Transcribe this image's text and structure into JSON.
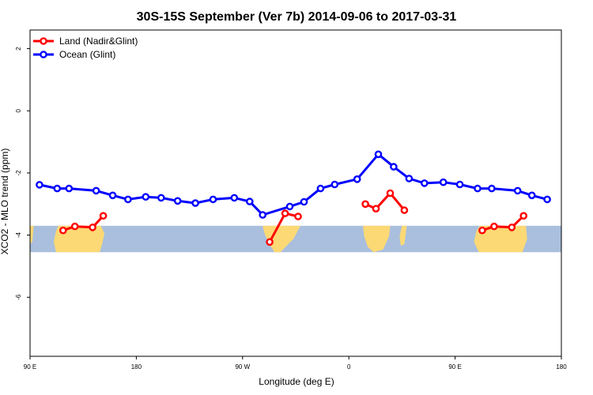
{
  "chart_data": {
    "type": "line",
    "title": "30S-15S September (Ver 7b)   2014-09-06 to 2017-03-31",
    "xlabel": "Longitude (deg E)",
    "ylabel": "XCO2 - MLO trend (ppm)",
    "xlim": [
      90,
      540
    ],
    "ylim": [
      -7.9,
      2.6
    ],
    "x_ticks": [
      {
        "value": 90,
        "label": "90 E"
      },
      {
        "value": 180,
        "label": "180"
      },
      {
        "value": 270,
        "label": "90 W"
      },
      {
        "value": 360,
        "label": "0"
      },
      {
        "value": 450,
        "label": "90 E"
      },
      {
        "value": 540,
        "label": "180"
      }
    ],
    "y_ticks": [
      {
        "value": 2,
        "label": "2"
      },
      {
        "value": 0,
        "label": "0"
      },
      {
        "value": -2,
        "label": "-2"
      },
      {
        "value": -4,
        "label": "-4"
      },
      {
        "value": -6,
        "label": "-6"
      }
    ],
    "legend_position": "top-left",
    "grid": false,
    "map_band": {
      "y_range": [
        -4.55,
        -3.7
      ],
      "ocean_color": "#a9bfdd",
      "land_color": "#fcd975"
    },
    "series": [
      {
        "name": "Land (Nadir&Glint)",
        "color": "#ff0000",
        "segments": [
          [
            [
              118,
              -3.85
            ],
            [
              128,
              -3.72
            ],
            [
              143,
              -3.75
            ],
            [
              152,
              -3.38
            ]
          ],
          [
            [
              293,
              -4.22
            ],
            [
              306,
              -3.3
            ],
            [
              317,
              -3.4
            ]
          ],
          [
            [
              374,
              -3.0
            ],
            [
              383,
              -3.15
            ],
            [
              395,
              -2.65
            ],
            [
              407,
              -3.2
            ]
          ],
          [
            [
              473,
              -3.85
            ],
            [
              483,
              -3.72
            ],
            [
              498,
              -3.75
            ],
            [
              508,
              -3.38
            ]
          ]
        ]
      },
      {
        "name": "Ocean (Glint)",
        "color": "#0000ff",
        "segments": [
          [
            [
              98,
              -2.38
            ],
            [
              113,
              -2.5
            ],
            [
              123,
              -2.5
            ],
            [
              146,
              -2.57
            ],
            [
              160,
              -2.72
            ],
            [
              173,
              -2.85
            ],
            [
              188,
              -2.77
            ],
            [
              201,
              -2.8
            ],
            [
              215,
              -2.9
            ],
            [
              230,
              -2.97
            ],
            [
              245,
              -2.85
            ],
            [
              263,
              -2.8
            ],
            [
              276,
              -2.92
            ],
            [
              287,
              -3.35
            ],
            [
              310,
              -3.08
            ],
            [
              322,
              -2.93
            ],
            [
              336,
              -2.5
            ],
            [
              348,
              -2.37
            ],
            [
              367,
              -2.2
            ],
            [
              385,
              -1.4
            ],
            [
              398,
              -1.8
            ],
            [
              411,
              -2.18
            ],
            [
              424,
              -2.33
            ],
            [
              440,
              -2.3
            ],
            [
              454,
              -2.37
            ],
            [
              469,
              -2.5
            ],
            [
              481,
              -2.5
            ],
            [
              503,
              -2.57
            ],
            [
              515,
              -2.72
            ],
            [
              528,
              -2.85
            ]
          ]
        ]
      }
    ]
  }
}
